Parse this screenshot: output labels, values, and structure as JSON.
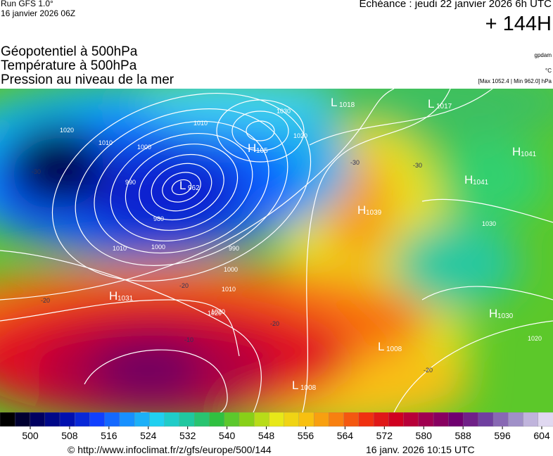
{
  "header": {
    "run": "Run GFS 1.0°",
    "run_date": "16 janvier 2026 06Z",
    "valid": "Echéance : jeudi 22 janvier 2026 6h UTC",
    "lead": "+ 144H"
  },
  "fields": [
    "Géopotentiel à 500hPa",
    "Température à 500hPa",
    "Pression au niveau de la mer"
  ],
  "units": {
    "geopotential": "gpdam",
    "temperature": "°C",
    "pressure": "[Max 1052.4 | Min 962.0] hPa"
  },
  "systems": [
    {
      "kind": "L",
      "label": "1018"
    },
    {
      "kind": "L",
      "label": "1017"
    },
    {
      "kind": "H",
      "label": "105"
    },
    {
      "kind": "H",
      "label": "1041"
    },
    {
      "kind": "H",
      "label": "1041"
    },
    {
      "kind": "L",
      "label": "962"
    },
    {
      "kind": "H",
      "label": "1039"
    },
    {
      "kind": "H",
      "label": "1031"
    },
    {
      "kind": "H",
      "label": "1030"
    },
    {
      "kind": "L",
      "label": "1008"
    },
    {
      "kind": "L",
      "label": "1008"
    }
  ],
  "contour_labels": [
    "1020",
    "1010",
    "1000",
    "990",
    "980",
    "1000",
    "1010",
    "1020",
    "1030",
    "1020",
    "1010",
    "1030",
    "1020",
    "1020",
    "990",
    "1000",
    "1010",
    "-20",
    "-30",
    "-20",
    "-10",
    "-20",
    "-30",
    "-30",
    "-20"
  ],
  "colorbar": {
    "ticks": [
      500,
      508,
      516,
      524,
      532,
      540,
      548,
      556,
      564,
      572,
      580,
      588,
      596,
      604
    ]
  },
  "footer": {
    "source": "© http://www.infoclimat.fr/z/gfs/europe/500/144",
    "time": "16 janv. 2026 10:15 UTC"
  }
}
